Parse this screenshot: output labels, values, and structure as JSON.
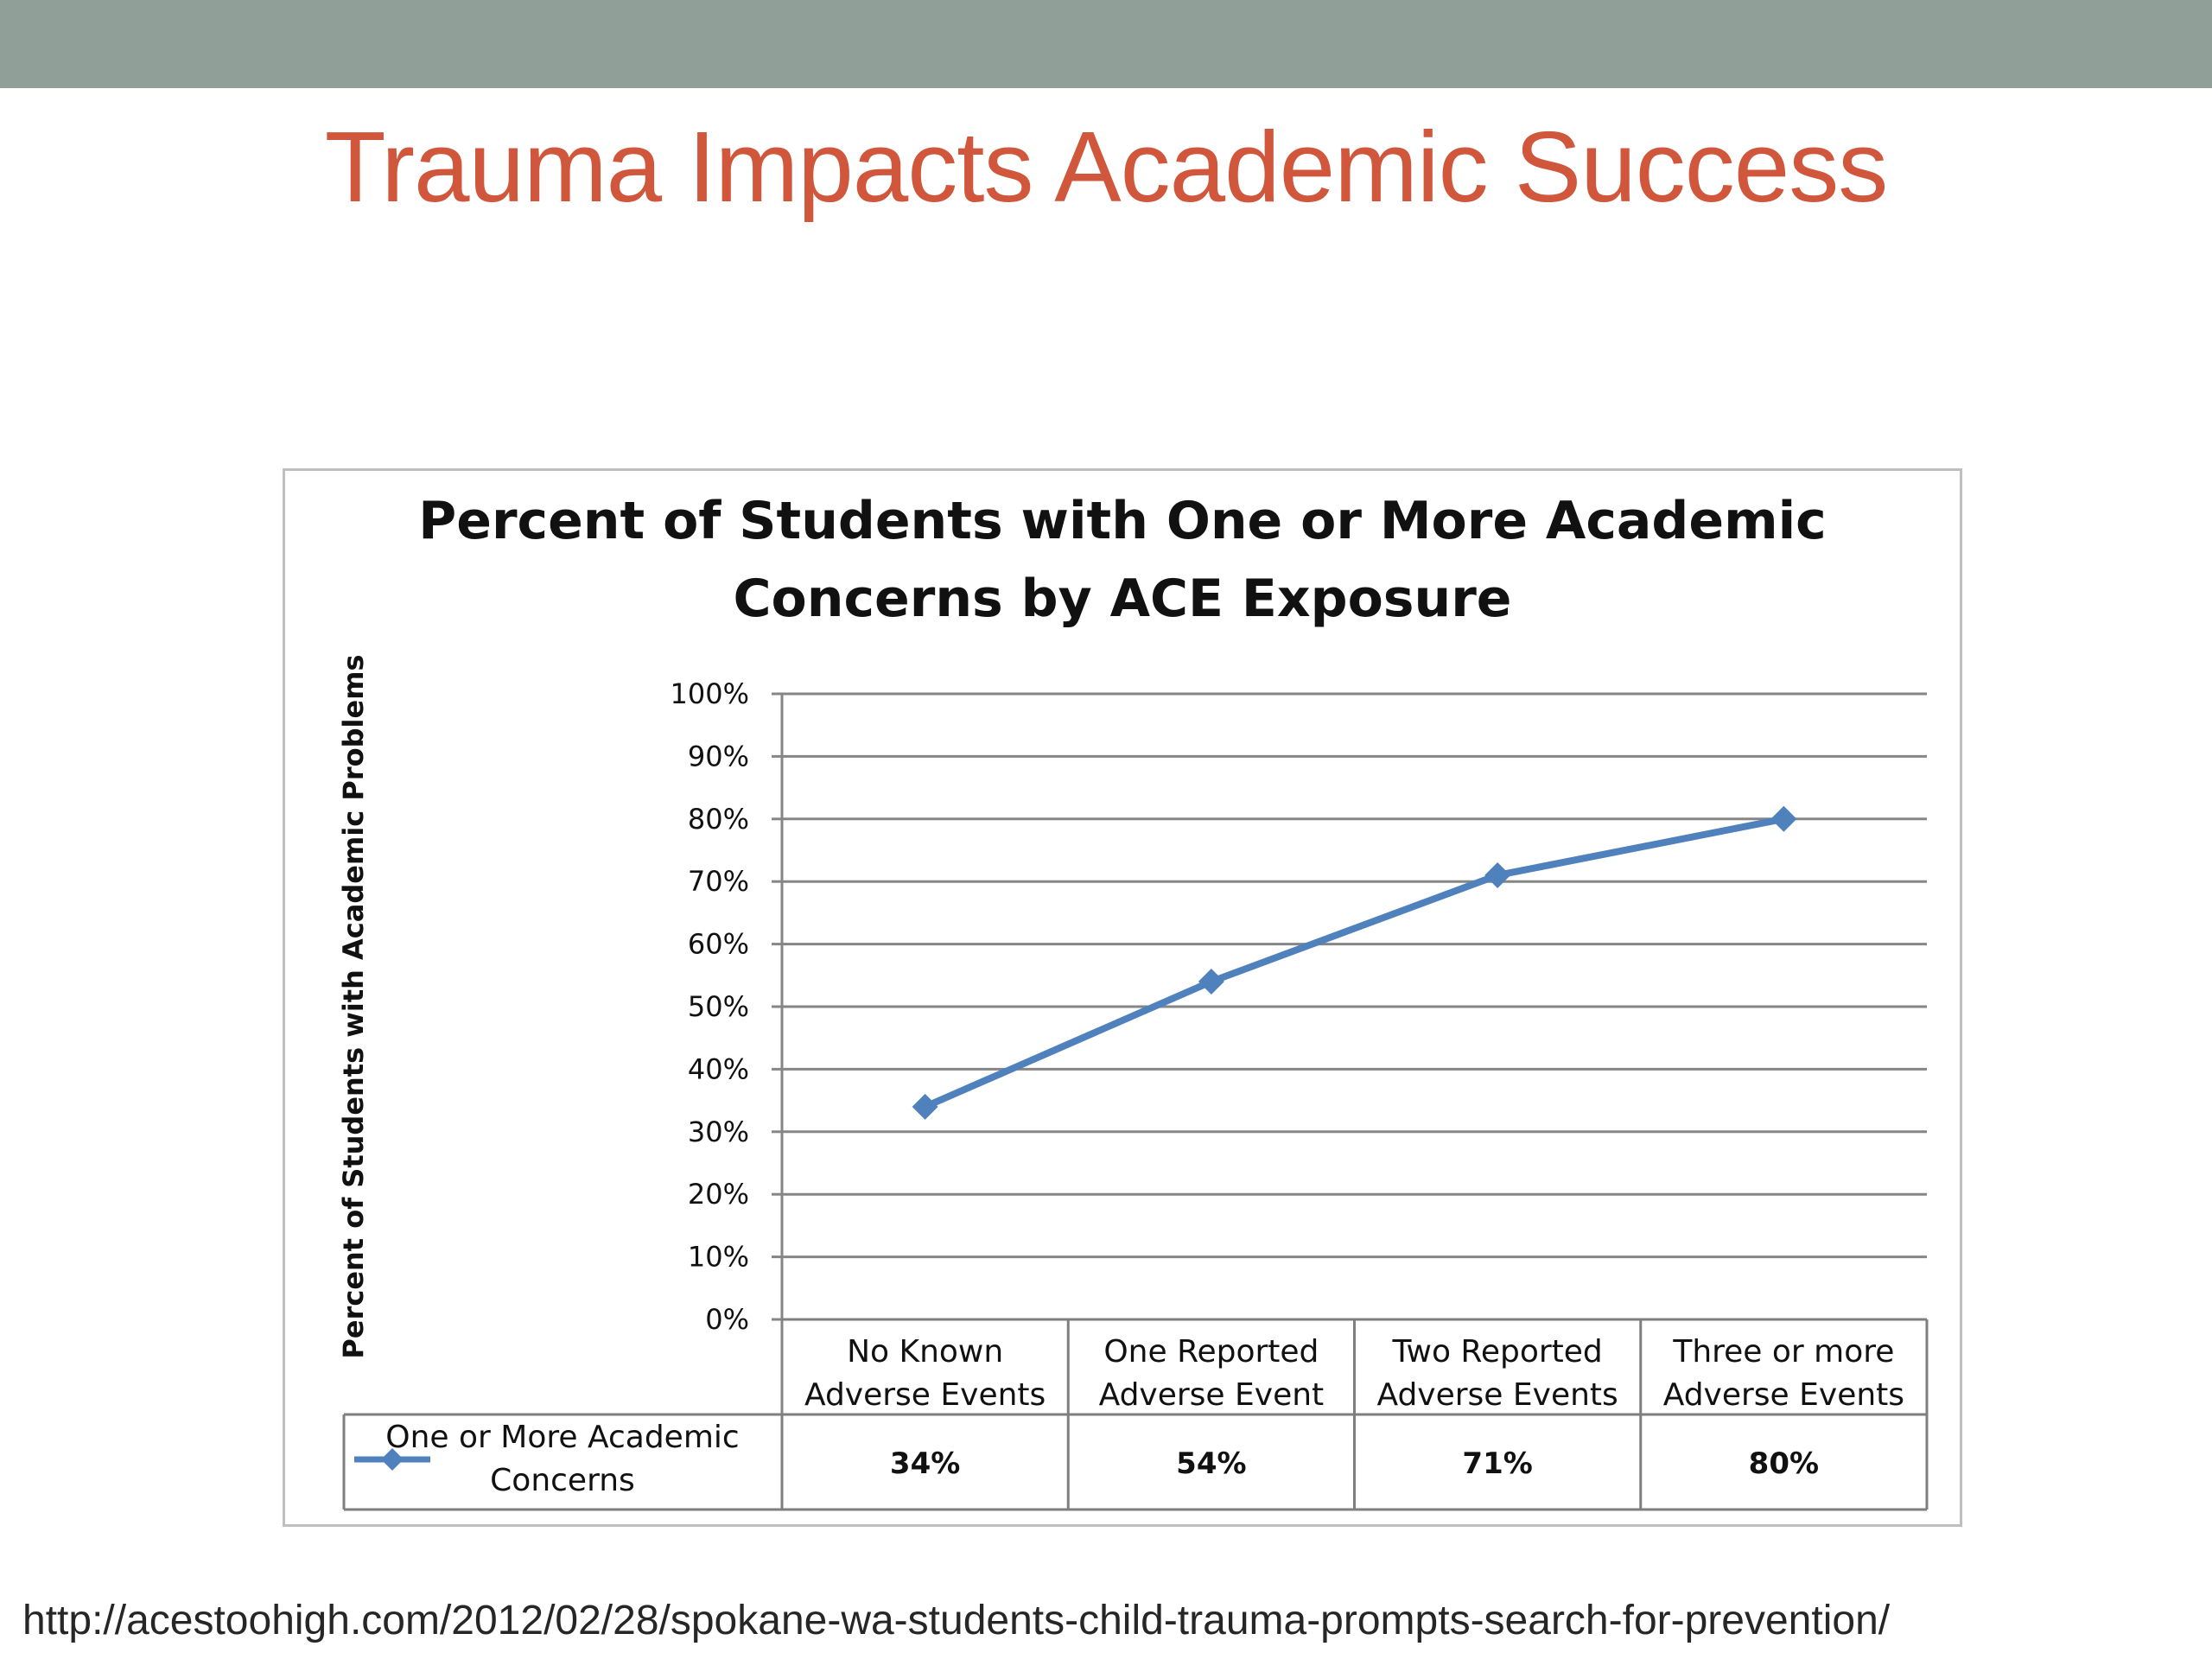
{
  "slide": {
    "title": "Trauma Impacts Academic Success",
    "source_url": "http://acestoohigh.com/2012/02/28/spokane-wa-students-child-trauma-prompts-search-for-prevention/"
  },
  "colors": {
    "top_bar": "#909f97",
    "title": "#d0563c",
    "series_line": "#4f81bd",
    "gridline": "#868686"
  },
  "chart_data": {
    "type": "line",
    "title_lines": [
      "Percent of Students with One or More Academic",
      "Concerns by ACE Exposure"
    ],
    "ylabel": "Percent of Students with Academic Problems",
    "xlabel": "",
    "ylim": [
      0,
      100
    ],
    "y_ticks": [
      "100%",
      "90%",
      "80%",
      "70%",
      "60%",
      "50%",
      "40%",
      "30%",
      "20%",
      "10%",
      "0%"
    ],
    "grid": true,
    "legend_placement": "data-table",
    "categories": [
      [
        "No Known",
        "Adverse Events"
      ],
      [
        "One Reported",
        "Adverse Event"
      ],
      [
        "Two Reported",
        "Adverse Events"
      ],
      [
        "Three or more",
        "Adverse Events"
      ]
    ],
    "series": [
      {
        "name_lines": [
          "One or More Academic",
          "Concerns"
        ],
        "values": [
          34,
          54,
          71,
          80
        ],
        "value_labels": [
          "34%",
          "54%",
          "71%",
          "80%"
        ],
        "marker": "diamond"
      }
    ]
  }
}
